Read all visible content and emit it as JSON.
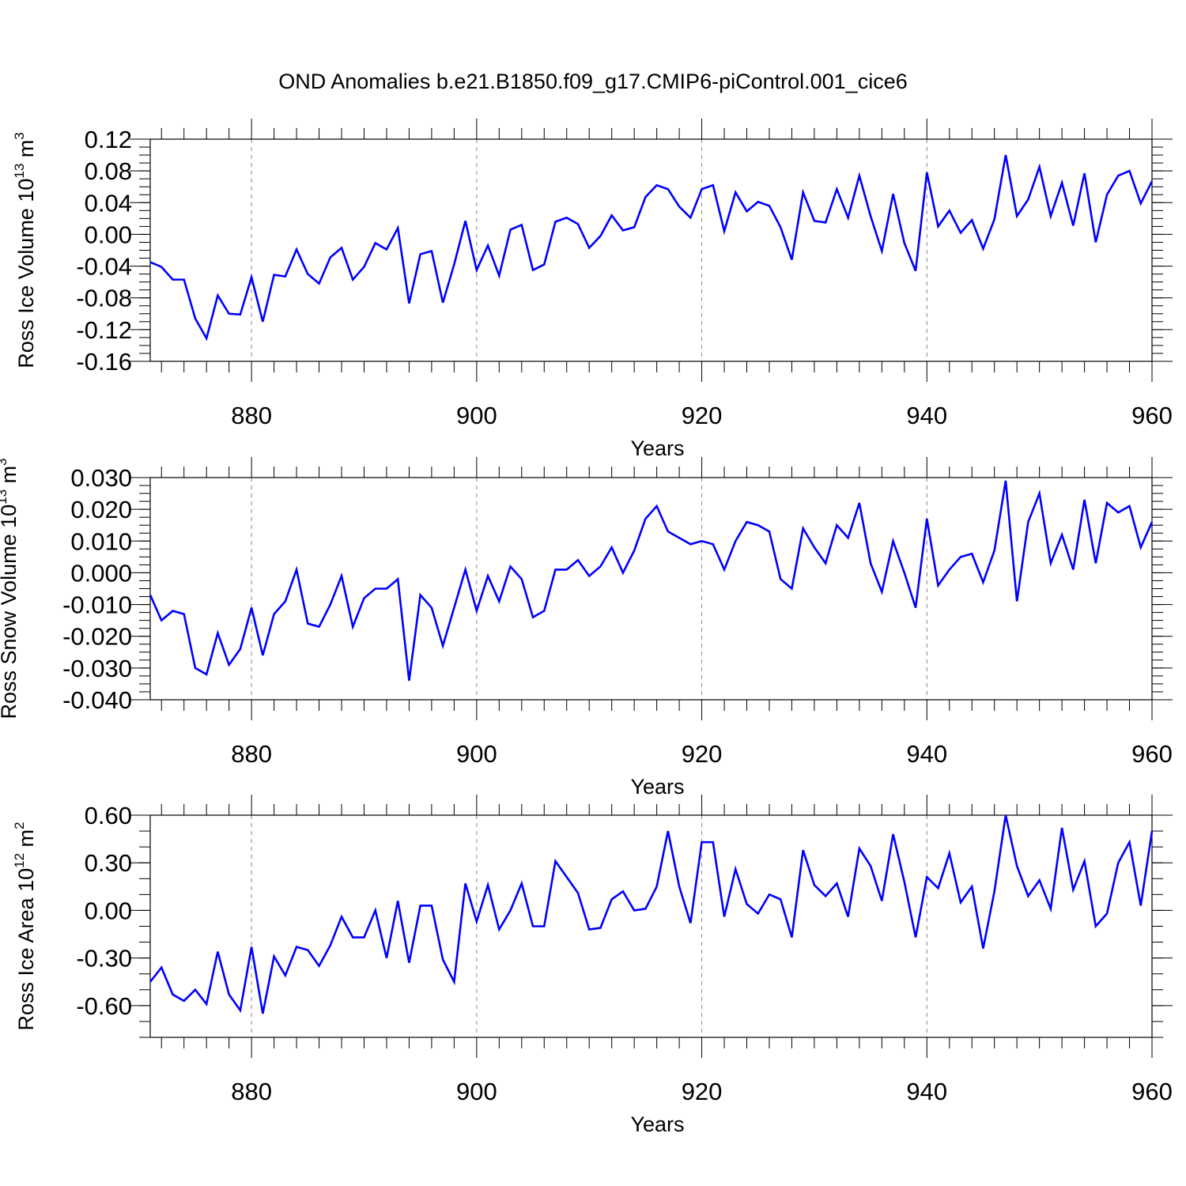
{
  "title": "OND Anomalies b.e21.B1850.f09_g17.CMIP6-piControl.001_cice6",
  "line_color": "#0000ff",
  "chart_data": [
    {
      "type": "line",
      "ylabel": "Ross Ice Volume 10",
      "ylabel_sup": "13",
      "ylabel_unit": " m",
      "ylabel_unit_sup": "3",
      "xlabel": "Years",
      "xlim": [
        871,
        960
      ],
      "ylim": [
        -0.16,
        0.12
      ],
      "yticks": [
        -0.16,
        -0.12,
        -0.08,
        -0.04,
        0.0,
        0.04,
        0.08,
        0.12
      ],
      "ytick_labels": [
        "-0.16",
        "-0.12",
        "-0.08",
        "-0.04",
        "0.00",
        "0.04",
        "0.08",
        "0.12"
      ],
      "xticks": [
        880,
        900,
        920,
        940,
        960
      ],
      "xtick_labels": [
        "880",
        "900",
        "920",
        "940",
        "960"
      ],
      "grid_x": [
        880,
        900,
        920,
        940
      ],
      "x": [
        871,
        872,
        873,
        874,
        875,
        876,
        877,
        878,
        879,
        880,
        881,
        882,
        883,
        884,
        885,
        886,
        887,
        888,
        889,
        890,
        891,
        892,
        893,
        894,
        895,
        896,
        897,
        898,
        899,
        900,
        901,
        902,
        903,
        904,
        905,
        906,
        907,
        908,
        909,
        910,
        911,
        912,
        913,
        914,
        915,
        916,
        917,
        918,
        919,
        920,
        921,
        922,
        923,
        924,
        925,
        926,
        927,
        928,
        929,
        930,
        931,
        932,
        933,
        934,
        935,
        936,
        937,
        938,
        939,
        940,
        941,
        942,
        943,
        944,
        945,
        946,
        947,
        948,
        949,
        950,
        951,
        952,
        953,
        954,
        955,
        956,
        957,
        958,
        959,
        960
      ],
      "values": [
        -0.035,
        -0.041,
        -0.057,
        -0.057,
        -0.106,
        -0.131,
        -0.077,
        -0.1,
        -0.101,
        -0.054,
        -0.11,
        -0.051,
        -0.053,
        -0.019,
        -0.05,
        -0.062,
        -0.029,
        -0.017,
        -0.057,
        -0.041,
        -0.011,
        -0.019,
        0.008,
        -0.087,
        -0.025,
        -0.021,
        -0.086,
        -0.038,
        0.017,
        -0.045,
        -0.014,
        -0.052,
        0.006,
        0.012,
        -0.045,
        -0.038,
        0.016,
        0.021,
        0.013,
        -0.017,
        -0.002,
        0.024,
        0.005,
        0.009,
        0.047,
        0.062,
        0.057,
        0.035,
        0.021,
        0.057,
        0.062,
        0.004,
        0.053,
        0.029,
        0.041,
        0.036,
        0.009,
        -0.032,
        0.053,
        0.017,
        0.015,
        0.057,
        0.021,
        0.074,
        0.023,
        -0.021,
        0.051,
        -0.011,
        -0.046,
        0.078,
        0.01,
        0.03,
        0.002,
        0.018,
        -0.018,
        0.019,
        0.1,
        0.023,
        0.044,
        0.085,
        0.023,
        0.065,
        0.011,
        0.077,
        -0.01,
        0.05,
        0.074,
        0.08,
        0.039,
        0.067
      ]
    },
    {
      "type": "line",
      "ylabel": "Ross Snow Volume 10",
      "ylabel_sup": "13",
      "ylabel_unit": " m",
      "ylabel_unit_sup": "3",
      "xlabel": "Years",
      "xlim": [
        871,
        960
      ],
      "ylim": [
        -0.04,
        0.03
      ],
      "yticks": [
        -0.04,
        -0.03,
        -0.02,
        -0.01,
        0.0,
        0.01,
        0.02,
        0.03
      ],
      "ytick_labels": [
        "-0.040",
        "-0.030",
        "-0.020",
        "-0.010",
        "0.000",
        "0.010",
        "0.020",
        "0.030"
      ],
      "xticks": [
        880,
        900,
        920,
        940,
        960
      ],
      "xtick_labels": [
        "880",
        "900",
        "920",
        "940",
        "960"
      ],
      "grid_x": [
        880,
        900,
        920,
        940
      ],
      "x": [
        871,
        872,
        873,
        874,
        875,
        876,
        877,
        878,
        879,
        880,
        881,
        882,
        883,
        884,
        885,
        886,
        887,
        888,
        889,
        890,
        891,
        892,
        893,
        894,
        895,
        896,
        897,
        898,
        899,
        900,
        901,
        902,
        903,
        904,
        905,
        906,
        907,
        908,
        909,
        910,
        911,
        912,
        913,
        914,
        915,
        916,
        917,
        918,
        919,
        920,
        921,
        922,
        923,
        924,
        925,
        926,
        927,
        928,
        929,
        930,
        931,
        932,
        933,
        934,
        935,
        936,
        937,
        938,
        939,
        940,
        941,
        942,
        943,
        944,
        945,
        946,
        947,
        948,
        949,
        950,
        951,
        952,
        953,
        954,
        955,
        956,
        957,
        958,
        959,
        960
      ],
      "values": [
        -0.007,
        -0.015,
        -0.012,
        -0.013,
        -0.03,
        -0.032,
        -0.019,
        -0.029,
        -0.024,
        -0.011,
        -0.026,
        -0.013,
        -0.009,
        0.001,
        -0.016,
        -0.017,
        -0.01,
        -0.001,
        -0.017,
        -0.008,
        -0.005,
        -0.005,
        -0.002,
        -0.034,
        -0.007,
        -0.011,
        -0.023,
        -0.011,
        0.001,
        -0.012,
        -0.001,
        -0.009,
        0.002,
        -0.002,
        -0.014,
        -0.012,
        0.001,
        0.001,
        0.004,
        -0.001,
        0.002,
        0.008,
        0.0,
        0.007,
        0.017,
        0.021,
        0.013,
        0.011,
        0.009,
        0.01,
        0.009,
        0.001,
        0.01,
        0.016,
        0.015,
        0.013,
        -0.002,
        -0.005,
        0.014,
        0.008,
        0.003,
        0.015,
        0.011,
        0.022,
        0.003,
        -0.006,
        0.01,
        0.0,
        -0.011,
        0.017,
        -0.004,
        0.001,
        0.005,
        0.006,
        -0.003,
        0.007,
        0.029,
        -0.009,
        0.016,
        0.025,
        0.003,
        0.012,
        0.001,
        0.023,
        0.003,
        0.022,
        0.019,
        0.021,
        0.008,
        0.016
      ]
    },
    {
      "type": "line",
      "ylabel": "Ross Ice Area 10",
      "ylabel_sup": "12",
      "ylabel_unit": " m",
      "ylabel_unit_sup": "2",
      "xlabel": "Years",
      "xlim": [
        871,
        960
      ],
      "ylim": [
        -0.8,
        0.6
      ],
      "yticks": [
        -0.6,
        -0.3,
        0.0,
        0.3,
        0.6
      ],
      "ytick_labels": [
        "-0.60",
        "-0.30",
        "0.00",
        "0.30",
        "0.60"
      ],
      "xticks": [
        880,
        900,
        920,
        940,
        960
      ],
      "xtick_labels": [
        "880",
        "900",
        "920",
        "940",
        "960"
      ],
      "grid_x": [
        880,
        900,
        920,
        940
      ],
      "x": [
        871,
        872,
        873,
        874,
        875,
        876,
        877,
        878,
        879,
        880,
        881,
        882,
        883,
        884,
        885,
        886,
        887,
        888,
        889,
        890,
        891,
        892,
        893,
        894,
        895,
        896,
        897,
        898,
        899,
        900,
        901,
        902,
        903,
        904,
        905,
        906,
        907,
        908,
        909,
        910,
        911,
        912,
        913,
        914,
        915,
        916,
        917,
        918,
        919,
        920,
        921,
        922,
        923,
        924,
        925,
        926,
        927,
        928,
        929,
        930,
        931,
        932,
        933,
        934,
        935,
        936,
        937,
        938,
        939,
        940,
        941,
        942,
        943,
        944,
        945,
        946,
        947,
        948,
        949,
        950,
        951,
        952,
        953,
        954,
        955,
        956,
        957,
        958,
        959,
        960
      ],
      "values": [
        -0.45,
        -0.36,
        -0.53,
        -0.57,
        -0.5,
        -0.59,
        -0.26,
        -0.53,
        -0.63,
        -0.23,
        -0.65,
        -0.29,
        -0.41,
        -0.23,
        -0.25,
        -0.35,
        -0.22,
        -0.04,
        -0.17,
        -0.17,
        0.0,
        -0.3,
        0.06,
        -0.33,
        0.03,
        0.03,
        -0.31,
        -0.45,
        0.17,
        -0.07,
        0.16,
        -0.12,
        0.0,
        0.17,
        -0.1,
        -0.1,
        0.31,
        0.21,
        0.11,
        -0.12,
        -0.11,
        0.07,
        0.12,
        0.0,
        0.01,
        0.15,
        0.5,
        0.15,
        -0.08,
        0.43,
        0.43,
        -0.04,
        0.26,
        0.04,
        -0.02,
        0.1,
        0.07,
        -0.17,
        0.38,
        0.16,
        0.09,
        0.17,
        -0.04,
        0.39,
        0.28,
        0.06,
        0.48,
        0.18,
        -0.17,
        0.21,
        0.14,
        0.36,
        0.05,
        0.15,
        -0.24,
        0.12,
        0.6,
        0.28,
        0.09,
        0.19,
        0.01,
        0.52,
        0.13,
        0.31,
        -0.1,
        -0.02,
        0.3,
        0.43,
        0.03,
        0.5
      ]
    }
  ]
}
